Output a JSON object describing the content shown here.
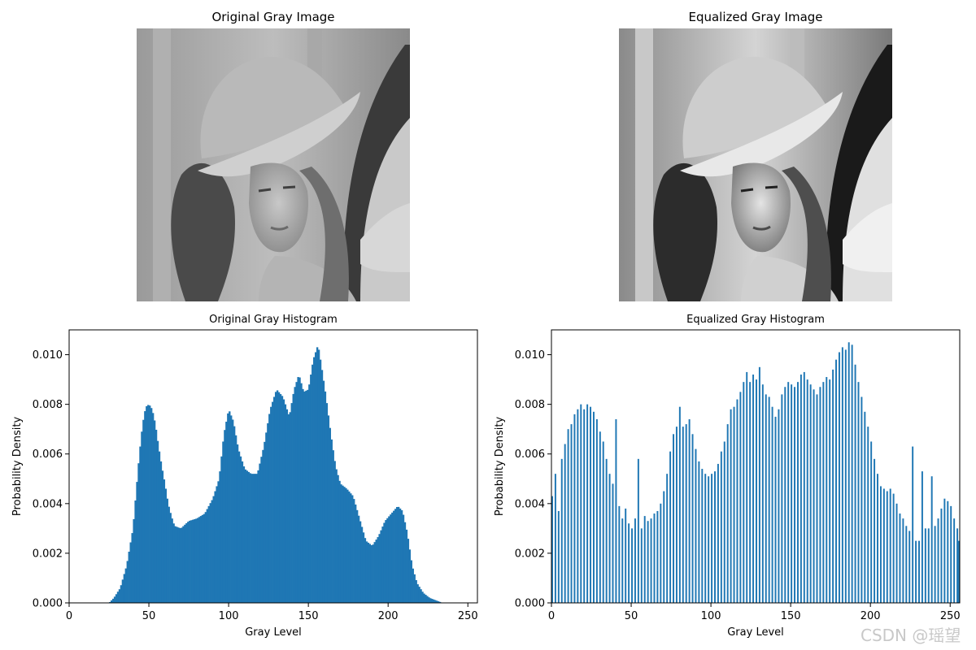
{
  "panels": {
    "img1_title": "Original Gray Image",
    "img2_title": "Equalized Gray Image",
    "watermark": "CSDN @瑶望"
  },
  "chart_data": [
    {
      "type": "bar",
      "title": "Original Gray Histogram",
      "xlabel": "Gray Level",
      "ylabel": "Probability Density",
      "xlim": [
        0,
        256
      ],
      "ylim": [
        0,
        0.011
      ],
      "xticks": [
        "0",
        "50",
        "100",
        "150",
        "200",
        "250"
      ],
      "yticks": [
        "0.000",
        "0.002",
        "0.004",
        "0.006",
        "0.008",
        "0.010"
      ],
      "color": "#1f77b4",
      "points": [
        [
          25,
          0
        ],
        [
          28,
          0.0002
        ],
        [
          32,
          0.0006
        ],
        [
          36,
          0.0015
        ],
        [
          40,
          0.003
        ],
        [
          42,
          0.0045
        ],
        [
          44,
          0.006
        ],
        [
          46,
          0.0072
        ],
        [
          48,
          0.0079
        ],
        [
          50,
          0.008
        ],
        [
          52,
          0.0078
        ],
        [
          54,
          0.0072
        ],
        [
          56,
          0.0063
        ],
        [
          58,
          0.0055
        ],
        [
          60,
          0.0048
        ],
        [
          62,
          0.004
        ],
        [
          64,
          0.0035
        ],
        [
          66,
          0.0031
        ],
        [
          70,
          0.003
        ],
        [
          75,
          0.0033
        ],
        [
          80,
          0.0034
        ],
        [
          85,
          0.0036
        ],
        [
          90,
          0.0042
        ],
        [
          94,
          0.005
        ],
        [
          97,
          0.0068
        ],
        [
          100,
          0.0078
        ],
        [
          103,
          0.0073
        ],
        [
          106,
          0.0062
        ],
        [
          110,
          0.0054
        ],
        [
          114,
          0.0052
        ],
        [
          118,
          0.0052
        ],
        [
          122,
          0.0063
        ],
        [
          126,
          0.0078
        ],
        [
          130,
          0.0086
        ],
        [
          134,
          0.0083
        ],
        [
          138,
          0.0075
        ],
        [
          141,
          0.0086
        ],
        [
          144,
          0.0092
        ],
        [
          147,
          0.0085
        ],
        [
          150,
          0.0086
        ],
        [
          153,
          0.0098
        ],
        [
          156,
          0.0104
        ],
        [
          158,
          0.0096
        ],
        [
          161,
          0.0083
        ],
        [
          164,
          0.0068
        ],
        [
          167,
          0.0055
        ],
        [
          170,
          0.0048
        ],
        [
          174,
          0.0046
        ],
        [
          178,
          0.0043
        ],
        [
          182,
          0.0034
        ],
        [
          186,
          0.0025
        ],
        [
          190,
          0.0023
        ],
        [
          194,
          0.0027
        ],
        [
          198,
          0.0033
        ],
        [
          202,
          0.0036
        ],
        [
          206,
          0.0039
        ],
        [
          209,
          0.0037
        ],
        [
          212,
          0.0028
        ],
        [
          215,
          0.0015
        ],
        [
          218,
          0.0008
        ],
        [
          222,
          0.0004
        ],
        [
          226,
          0.0002
        ],
        [
          230,
          0.0001
        ],
        [
          234,
          0
        ],
        [
          240,
          0
        ]
      ]
    },
    {
      "type": "bar",
      "title": "Equalized Gray Histogram",
      "xlabel": "Gray Level",
      "ylabel": "Probability Density",
      "xlim": [
        0,
        256
      ],
      "ylim": [
        0,
        0.011
      ],
      "xticks": [
        "0",
        "50",
        "100",
        "150",
        "200",
        "250"
      ],
      "yticks": [
        "0.000",
        "0.002",
        "0.004",
        "0.006",
        "0.008",
        "0.010"
      ],
      "color": "#1f77b4",
      "points": [
        [
          0,
          0.0043
        ],
        [
          2,
          0.0052
        ],
        [
          4,
          0.0037
        ],
        [
          6,
          0.0058
        ],
        [
          8,
          0.0064
        ],
        [
          10,
          0.007
        ],
        [
          12,
          0.0072
        ],
        [
          14,
          0.0076
        ],
        [
          16,
          0.0078
        ],
        [
          18,
          0.008
        ],
        [
          20,
          0.0078
        ],
        [
          22,
          0.008
        ],
        [
          24,
          0.0079
        ],
        [
          26,
          0.0077
        ],
        [
          28,
          0.0074
        ],
        [
          30,
          0.0069
        ],
        [
          32,
          0.0065
        ],
        [
          34,
          0.0058
        ],
        [
          36,
          0.0052
        ],
        [
          38,
          0.0048
        ],
        [
          40,
          0.0074
        ],
        [
          42,
          0.0039
        ],
        [
          44,
          0.0034
        ],
        [
          46,
          0.0038
        ],
        [
          48,
          0.0032
        ],
        [
          50,
          0.003
        ],
        [
          52,
          0.0034
        ],
        [
          54,
          0.0058
        ],
        [
          56,
          0.003
        ],
        [
          58,
          0.0035
        ],
        [
          60,
          0.0033
        ],
        [
          62,
          0.0034
        ],
        [
          64,
          0.0036
        ],
        [
          66,
          0.0037
        ],
        [
          68,
          0.004
        ],
        [
          70,
          0.0045
        ],
        [
          72,
          0.0052
        ],
        [
          74,
          0.0061
        ],
        [
          76,
          0.0068
        ],
        [
          78,
          0.0071
        ],
        [
          80,
          0.0079
        ],
        [
          82,
          0.0071
        ],
        [
          84,
          0.0072
        ],
        [
          86,
          0.0074
        ],
        [
          88,
          0.0068
        ],
        [
          90,
          0.0062
        ],
        [
          92,
          0.0057
        ],
        [
          94,
          0.0054
        ],
        [
          96,
          0.0052
        ],
        [
          98,
          0.0051
        ],
        [
          100,
          0.0052
        ],
        [
          102,
          0.0053
        ],
        [
          104,
          0.0056
        ],
        [
          106,
          0.0061
        ],
        [
          108,
          0.0065
        ],
        [
          110,
          0.0072
        ],
        [
          112,
          0.0078
        ],
        [
          114,
          0.0079
        ],
        [
          116,
          0.0082
        ],
        [
          118,
          0.0085
        ],
        [
          120,
          0.0089
        ],
        [
          122,
          0.0093
        ],
        [
          124,
          0.0089
        ],
        [
          126,
          0.0092
        ],
        [
          128,
          0.009
        ],
        [
          130,
          0.0095
        ],
        [
          132,
          0.0088
        ],
        [
          134,
          0.0084
        ],
        [
          136,
          0.0083
        ],
        [
          138,
          0.0079
        ],
        [
          140,
          0.0075
        ],
        [
          142,
          0.0078
        ],
        [
          144,
          0.0084
        ],
        [
          146,
          0.0087
        ],
        [
          148,
          0.0089
        ],
        [
          150,
          0.0088
        ],
        [
          152,
          0.0087
        ],
        [
          154,
          0.0089
        ],
        [
          156,
          0.0092
        ],
        [
          158,
          0.0093
        ],
        [
          160,
          0.009
        ],
        [
          162,
          0.0088
        ],
        [
          164,
          0.0086
        ],
        [
          166,
          0.0084
        ],
        [
          168,
          0.0087
        ],
        [
          170,
          0.0089
        ],
        [
          172,
          0.0091
        ],
        [
          174,
          0.009
        ],
        [
          176,
          0.0094
        ],
        [
          178,
          0.0098
        ],
        [
          180,
          0.0101
        ],
        [
          182,
          0.0103
        ],
        [
          184,
          0.0102
        ],
        [
          186,
          0.0105
        ],
        [
          188,
          0.0104
        ],
        [
          190,
          0.0096
        ],
        [
          192,
          0.0089
        ],
        [
          194,
          0.0083
        ],
        [
          196,
          0.0077
        ],
        [
          198,
          0.0071
        ],
        [
          200,
          0.0065
        ],
        [
          202,
          0.0058
        ],
        [
          204,
          0.0052
        ],
        [
          206,
          0.0047
        ],
        [
          208,
          0.0046
        ],
        [
          210,
          0.0045
        ],
        [
          212,
          0.0046
        ],
        [
          214,
          0.0044
        ],
        [
          216,
          0.004
        ],
        [
          218,
          0.0036
        ],
        [
          220,
          0.0034
        ],
        [
          222,
          0.0031
        ],
        [
          224,
          0.0029
        ],
        [
          226,
          0.0063
        ],
        [
          228,
          0.0025
        ],
        [
          230,
          0.0025
        ],
        [
          232,
          0.0053
        ],
        [
          234,
          0.003
        ],
        [
          236,
          0.003
        ],
        [
          238,
          0.0051
        ],
        [
          240,
          0.0031
        ],
        [
          242,
          0.0034
        ],
        [
          244,
          0.0038
        ],
        [
          246,
          0.0042
        ],
        [
          248,
          0.0041
        ],
        [
          250,
          0.0039
        ],
        [
          252,
          0.0034
        ],
        [
          254,
          0.003
        ],
        [
          255,
          0.0025
        ]
      ]
    }
  ]
}
